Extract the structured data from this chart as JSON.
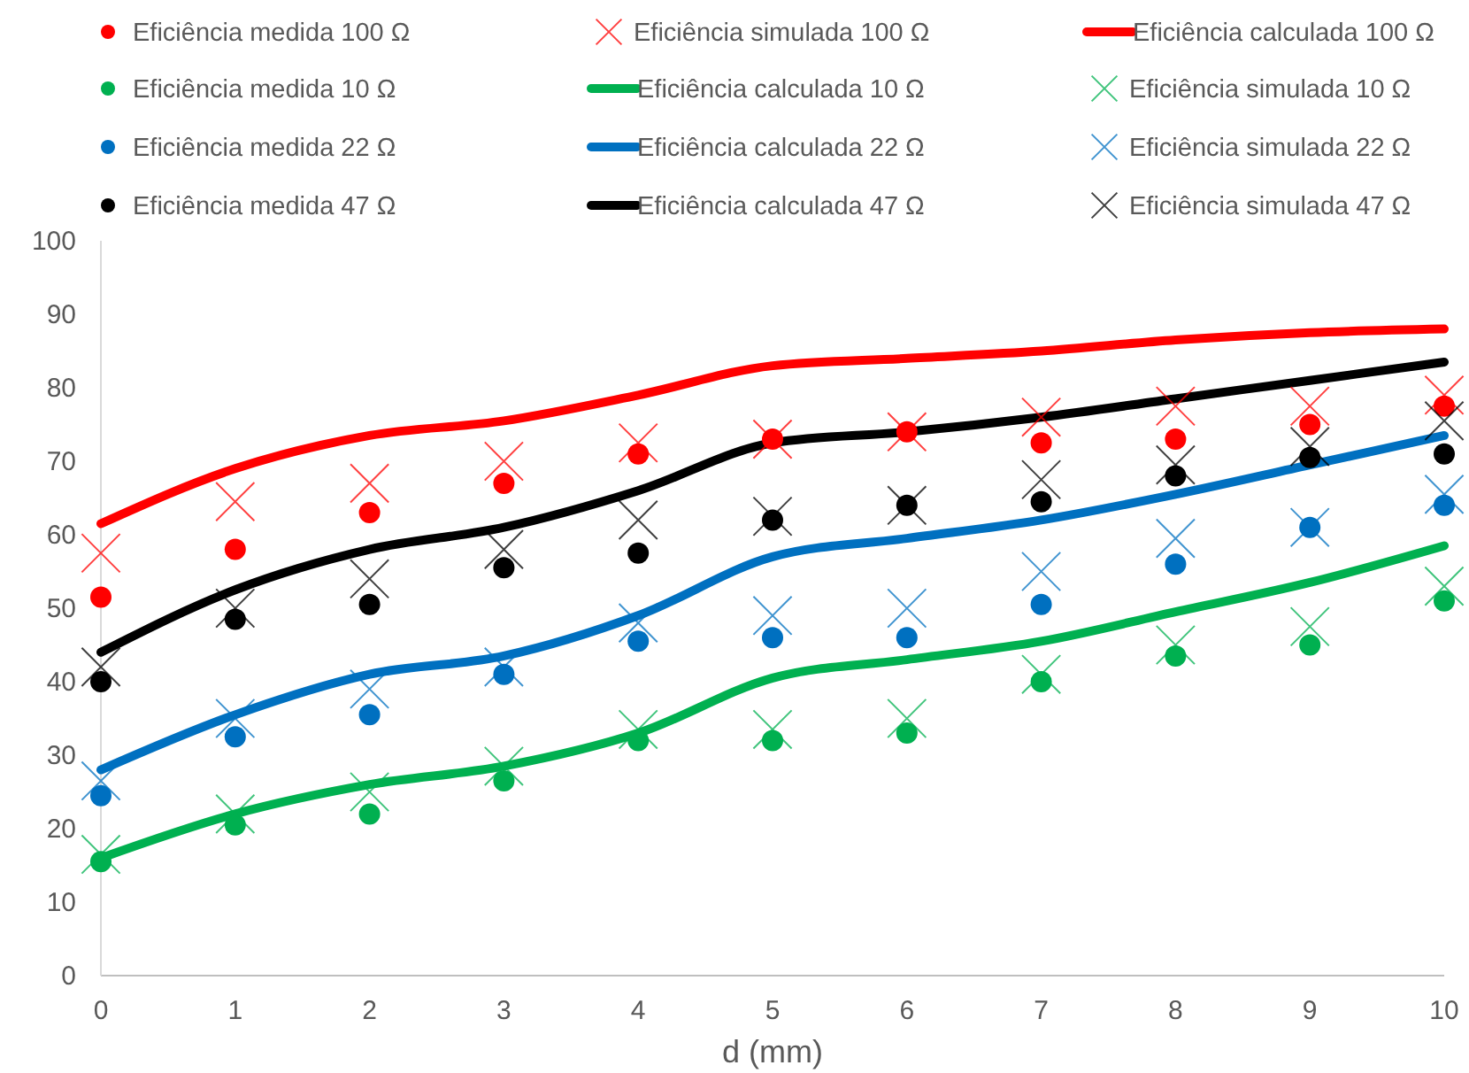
{
  "chart_data": {
    "type": "scatter",
    "xlabel": "d (mm)",
    "x": [
      0,
      1,
      2,
      3,
      4,
      5,
      6,
      7,
      8,
      9,
      10
    ],
    "xlim": [
      0,
      10
    ],
    "xticks": [
      0,
      1,
      2,
      3,
      4,
      5,
      6,
      7,
      8,
      9,
      10
    ],
    "ylim": [
      0,
      100
    ],
    "yticks": [
      0,
      10,
      20,
      30,
      40,
      50,
      60,
      70,
      80,
      90,
      100
    ],
    "legend": "top",
    "series": [
      {
        "name": "Eficiência medida 100 Ω",
        "marker": "circle",
        "color": "#ff0000",
        "values": [
          51.5,
          58,
          63,
          67,
          71,
          73,
          74,
          72.5,
          73,
          75,
          77.5
        ]
      },
      {
        "name": "Eficiência simulada 100 Ω",
        "marker": "cross",
        "color": "#ff0000",
        "values": [
          57.5,
          64.5,
          67,
          70,
          72.5,
          73,
          74,
          76,
          77.5,
          77.5,
          79
        ]
      },
      {
        "name": "Eficiência calculada 100 Ω",
        "type": "line",
        "marker": "none",
        "color": "#ff0000",
        "values": [
          61.5,
          69,
          73.5,
          75.5,
          79,
          83,
          84,
          85,
          86.5,
          87.5,
          88
        ]
      },
      {
        "name": "Eficiência medida 10 Ω",
        "marker": "circle",
        "color": "#00b050",
        "values": [
          15.5,
          20.5,
          22,
          26.5,
          32,
          32,
          33,
          40,
          43.5,
          45,
          51
        ]
      },
      {
        "name": "Eficiência calculada 10 Ω",
        "type": "line",
        "marker": "none",
        "color": "#00b050",
        "values": [
          16,
          22,
          26,
          28.5,
          33,
          40.5,
          43,
          45.5,
          49.5,
          53.5,
          58.5
        ]
      },
      {
        "name": "Eficiência simulada 10 Ω",
        "marker": "cross",
        "color": "#00b050",
        "values": [
          16.5,
          22,
          25,
          28.5,
          33.5,
          33.5,
          35,
          41,
          45,
          47.5,
          53
        ]
      },
      {
        "name": "Eficiência medida 22 Ω",
        "marker": "circle",
        "color": "#0070c0",
        "values": [
          24.5,
          32.5,
          35.5,
          41,
          45.5,
          46,
          46,
          50.5,
          56,
          61,
          64
        ]
      },
      {
        "name": "Eficiência calculada 22 Ω",
        "type": "line",
        "marker": "none",
        "color": "#0070c0",
        "values": [
          28,
          35.5,
          41,
          43.5,
          49,
          57,
          59.5,
          62,
          65.5,
          69.5,
          73.5
        ]
      },
      {
        "name": "Eficiência simulada 22 Ω",
        "marker": "cross",
        "color": "#0070c0",
        "values": [
          26.5,
          35,
          39,
          42,
          48,
          49,
          50,
          55,
          59.5,
          61,
          65.5
        ]
      },
      {
        "name": "Eficiência medida 47 Ω",
        "marker": "circle",
        "color": "#000000",
        "values": [
          40,
          48.5,
          50.5,
          55.5,
          57.5,
          62,
          64,
          64.5,
          68,
          70.5,
          71
        ]
      },
      {
        "name": "Eficiência calculada 47 Ω",
        "type": "line",
        "marker": "none",
        "color": "#000000",
        "values": [
          44,
          52.5,
          58,
          61,
          66,
          72.5,
          74,
          76,
          78.5,
          81,
          83.5
        ]
      },
      {
        "name": "Eficiência simulada 47 Ω",
        "marker": "cross",
        "color": "#000000",
        "values": [
          42,
          50,
          54,
          58,
          62,
          62.5,
          64,
          67.5,
          69.5,
          72,
          75.5
        ]
      }
    ]
  }
}
